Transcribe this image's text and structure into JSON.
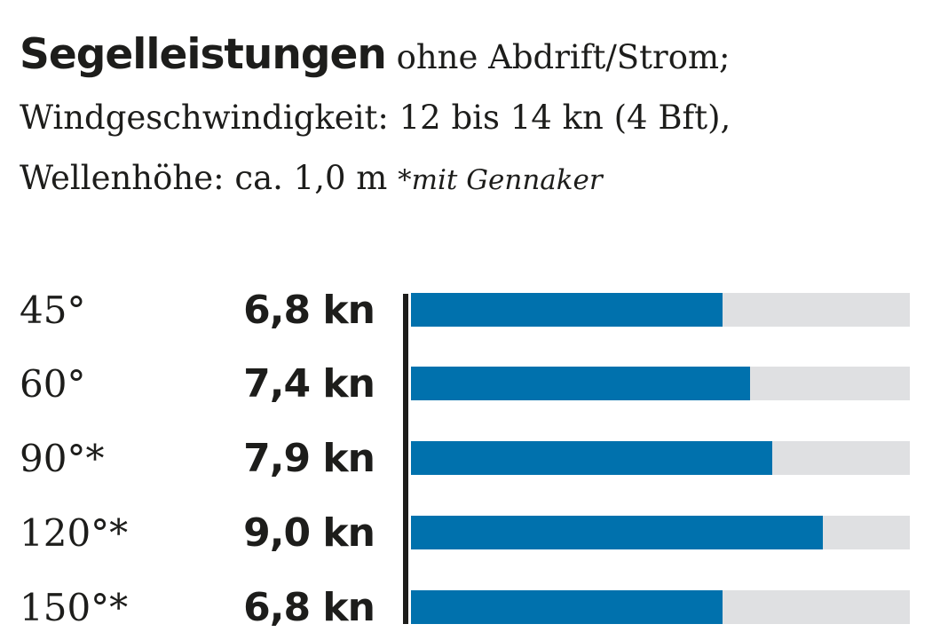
{
  "chart_data": {
    "type": "bar",
    "orientation": "horizontal",
    "title": "Segelleistungen",
    "subtitle_parts": [
      "ohne Abdrift/Strom;",
      "Windgeschwindigkeit: 12 bis 14 kn (4 Bft),",
      "Wellenhöhe: ca. 1,0 m"
    ],
    "note": "*mit Gennaker",
    "categories": [
      "45°",
      "60°",
      "90°*",
      "120°*",
      "150°*"
    ],
    "values": [
      6.8,
      7.4,
      7.9,
      9.0,
      6.8
    ],
    "value_labels": [
      "6,8 kn",
      "7,4 kn",
      "7,9 kn",
      "9,0 kn",
      "6,8 kn"
    ],
    "unit": "kn",
    "xlim": [
      0,
      10.9
    ],
    "grid": false,
    "colors": {
      "bar": "#0071ad",
      "track": "#dfe0e2",
      "axis": "#1d1d1b"
    }
  }
}
